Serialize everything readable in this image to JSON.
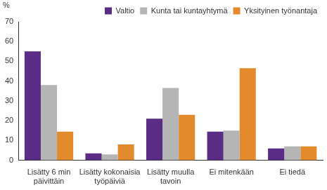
{
  "chart_data": {
    "type": "bar",
    "ylabel": "%",
    "categories": [
      "Lisätty 6 min päivittäin",
      "Lisätty kokonaisia työpäiviä",
      "Lisätty muulla tavoin",
      "Ei mitenkään",
      "Ei tiedä"
    ],
    "series": [
      {
        "name": "Valtio",
        "color": "#5b2c86",
        "values": [
          55,
          3.5,
          21,
          14.5,
          6
        ]
      },
      {
        "name": "Kunta tai kuntayhtymä",
        "color": "#b5b5b5",
        "values": [
          38,
          3,
          36.5,
          15,
          7
        ]
      },
      {
        "name": "Yksityinen työnantaja",
        "color": "#e38a2d",
        "values": [
          14.5,
          8,
          23,
          46.5,
          7
        ]
      }
    ],
    "ylim": [
      0,
      70
    ],
    "yticks": [
      0,
      10,
      20,
      30,
      40,
      50,
      60,
      70
    ],
    "grid": false,
    "legend": "top"
  }
}
